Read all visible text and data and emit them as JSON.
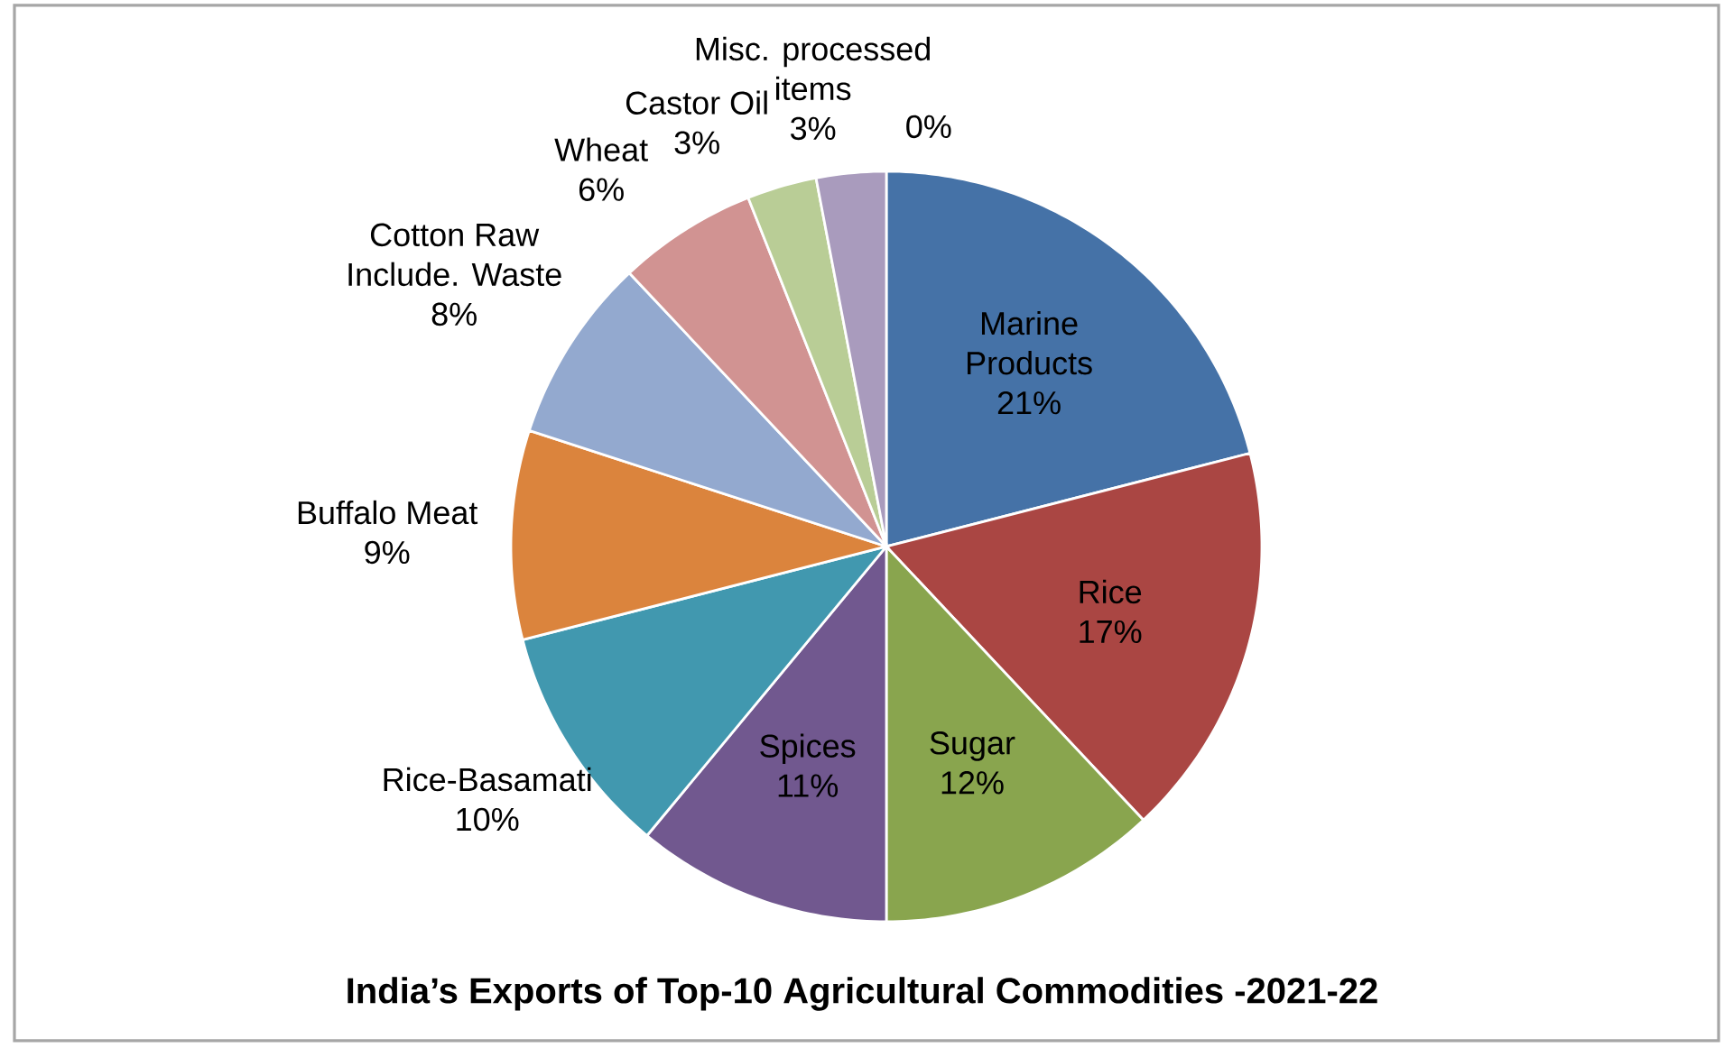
{
  "chart_data": {
    "type": "pie",
    "title": "India’s Exports of Top-10 Agricultural Commodities  -2021-22",
    "categories": [
      "Marine Products",
      "Rice",
      "Sugar",
      "Spices",
      "Rice-Basamati",
      "Buffalo Meat",
      "Cotton Raw Include. Waste",
      "Wheat",
      "Castor Oil",
      "Misc. processed items",
      null
    ],
    "values": [
      21,
      17,
      12,
      11,
      10,
      9,
      8,
      6,
      3,
      3,
      0
    ],
    "value_labels": [
      "21%",
      "17%",
      "12%",
      "11%",
      "10%",
      "9%",
      "8%",
      "6%",
      "3%",
      "3%",
      "0%"
    ],
    "colors": [
      "#4572a7",
      "#aa4643",
      "#89a54e",
      "#71588f",
      "#4198af",
      "#db843d",
      "#93a9cf",
      "#d19392",
      "#b9cd96",
      "#a99bbd",
      "#f2c47a"
    ]
  }
}
